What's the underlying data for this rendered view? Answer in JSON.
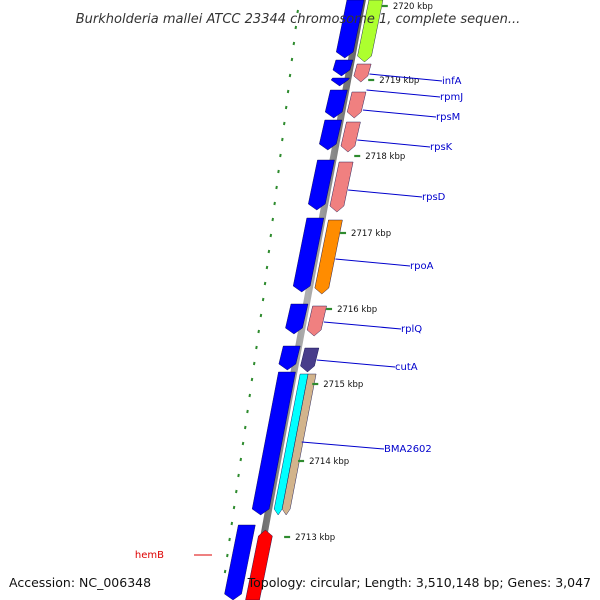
{
  "title": "Burkholderia mallei ATCC 23344 chromosome 1, complete sequen...",
  "accession": "Accession: NC_006348",
  "summary": "Topology: circular; Length: 3,510,148 bp; Genes: 3,047",
  "colors": {
    "forward_cds": "#0000ff",
    "backbone": "#808080",
    "tick": "#2e8b2e",
    "label_blue": "#0000cc",
    "label_red": "#dd0000"
  },
  "ticks": [
    {
      "label": "2720 kbp"
    },
    {
      "label": "2719 kbp"
    },
    {
      "label": "2718 kbp"
    },
    {
      "label": "2717 kbp"
    },
    {
      "label": "2716 kbp"
    },
    {
      "label": "2715 kbp"
    },
    {
      "label": "2714 kbp"
    },
    {
      "label": "2713 kbp"
    }
  ],
  "genes": [
    {
      "name": "infA",
      "color": "#0000cc"
    },
    {
      "name": "rpmJ",
      "color": "#0000cc"
    },
    {
      "name": "rpsM",
      "color": "#0000cc"
    },
    {
      "name": "rpsK",
      "color": "#0000cc"
    },
    {
      "name": "rpsD",
      "color": "#0000cc"
    },
    {
      "name": "rpoA",
      "color": "#0000cc"
    },
    {
      "name": "rplQ",
      "color": "#0000cc"
    },
    {
      "name": "cutA",
      "color": "#0000cc"
    },
    {
      "name": "BMA2602",
      "color": "#0000cc"
    },
    {
      "name": "hemB",
      "color": "#dd0000"
    }
  ],
  "feature_colors": [
    "#adff2f",
    "#f08080",
    "#ff8c00",
    "#483d8b",
    "#00ffff",
    "#d2b48c",
    "#ff0000"
  ]
}
